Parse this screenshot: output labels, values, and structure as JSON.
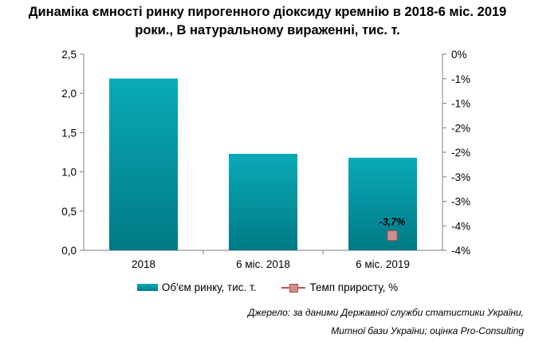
{
  "chart_data": {
    "type": "bar",
    "title": "Динаміка ємності ринку пирогенного діоксиду кремнію в 2018-6 міс. 2019 роки., В натуральному вираженні, тис. т.",
    "title_lines": [
      "Динаміка ємності ринку пирогенного діоксиду кремнію в 2018-6 міс. 2019",
      "роки., В натуральному вираженні, тис. т."
    ],
    "categories": [
      "2018",
      "6 міс. 2018",
      "6 міс. 2019"
    ],
    "series": [
      {
        "name": "Об'єм ринку, тис. т.",
        "type": "bar",
        "axis": "left",
        "values": [
          2.19,
          1.23,
          1.18
        ],
        "color": "#0a9eab"
      },
      {
        "name": "Темп приросту, %",
        "type": "line",
        "axis": "right",
        "values": [
          null,
          null,
          -3.7
        ],
        "labels": [
          null,
          null,
          "-3,7%"
        ],
        "color": "#c0504d"
      }
    ],
    "y_left": {
      "ylim": [
        0,
        2.5
      ],
      "ticks": [
        0,
        0.5,
        1.0,
        1.5,
        2.0,
        2.5
      ],
      "tick_labels": [
        "0,0",
        "0,5",
        "1,0",
        "1,5",
        "2,0",
        "2,5"
      ]
    },
    "y_right": {
      "ylim": [
        -4,
        0
      ],
      "ticks": [
        0,
        -0.5,
        -1,
        -1.5,
        -2,
        -2.5,
        -3,
        -3.5,
        -4
      ],
      "tick_labels": [
        "0%",
        "-1%",
        "-1%",
        "-2%",
        "-2%",
        "-3%",
        "-3%",
        "-4%",
        "-4%"
      ]
    },
    "grid": false,
    "legend": "bottom"
  },
  "source_lines": [
    "Джерело: за даними Державної служби статистики України,",
    "Митної бази України; оцінка Pro-Consulting"
  ]
}
